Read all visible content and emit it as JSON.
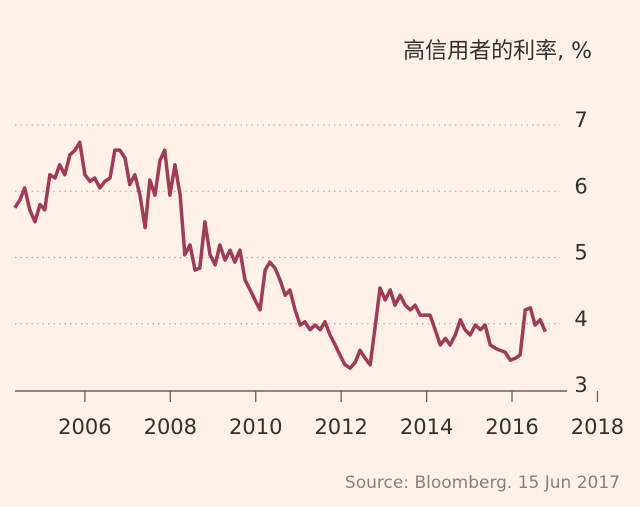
{
  "chart_data": {
    "type": "line",
    "title": "高信用者的利率, %",
    "source": "Source: Bloomberg. 15 Jun 2017",
    "x": [
      2004.36,
      2004.48,
      2004.59,
      2004.71,
      2004.83,
      2004.95,
      2005.06,
      2005.18,
      2005.3,
      2005.41,
      2005.53,
      2005.65,
      2005.77,
      2005.88,
      2006.0,
      2006.12,
      2006.23,
      2006.35,
      2006.47,
      2006.59,
      2006.7,
      2006.82,
      2006.94,
      2007.05,
      2007.17,
      2007.29,
      2007.41,
      2007.52,
      2007.64,
      2007.76,
      2007.87,
      2007.99,
      2008.11,
      2008.23,
      2008.34,
      2008.46,
      2008.58,
      2008.69,
      2008.81,
      2008.93,
      2009.05,
      2009.16,
      2009.28,
      2009.4,
      2009.51,
      2009.63,
      2009.75,
      2009.87,
      2009.98,
      2010.1,
      2010.22,
      2010.33,
      2010.45,
      2010.57,
      2010.69,
      2010.8,
      2010.92,
      2011.04,
      2011.15,
      2011.27,
      2011.39,
      2011.51,
      2011.62,
      2011.74,
      2011.86,
      2011.97,
      2012.09,
      2012.21,
      2012.33,
      2012.44,
      2012.56,
      2012.68,
      2012.8,
      2012.91,
      2013.03,
      2013.15,
      2013.26,
      2013.38,
      2013.5,
      2013.62,
      2013.73,
      2013.85,
      2013.97,
      2014.08,
      2014.2,
      2014.32,
      2014.44,
      2014.55,
      2014.67,
      2014.79,
      2014.9,
      2015.02,
      2015.14,
      2015.26,
      2015.37,
      2015.49,
      2015.61,
      2015.72,
      2015.84,
      2015.96,
      2016.08,
      2016.19,
      2016.31,
      2016.43,
      2016.54,
      2016.66,
      2016.78
    ],
    "series": [
      {
        "color": "#9e3b56",
        "values": [
          5.75,
          5.87,
          6.05,
          5.72,
          5.54,
          5.8,
          5.72,
          6.25,
          6.2,
          6.4,
          6.25,
          6.55,
          6.62,
          6.74,
          6.25,
          6.15,
          6.2,
          6.05,
          6.15,
          6.2,
          6.62,
          6.62,
          6.5,
          6.1,
          6.25,
          5.94,
          5.45,
          6.17,
          5.94,
          6.47,
          6.62,
          5.94,
          6.4,
          5.94,
          5.04,
          5.19,
          4.81,
          4.84,
          5.54,
          5.04,
          4.89,
          5.19,
          4.96,
          5.11,
          4.93,
          5.11,
          4.66,
          4.51,
          4.36,
          4.21,
          4.81,
          4.93,
          4.84,
          4.66,
          4.43,
          4.51,
          4.21,
          3.98,
          4.03,
          3.91,
          3.98,
          3.91,
          4.03,
          3.83,
          3.68,
          3.53,
          3.38,
          3.33,
          3.42,
          3.6,
          3.48,
          3.38,
          3.98,
          4.54,
          4.36,
          4.51,
          4.28,
          4.43,
          4.28,
          4.21,
          4.28,
          4.13,
          4.13,
          4.13,
          3.91,
          3.68,
          3.78,
          3.68,
          3.83,
          4.06,
          3.91,
          3.83,
          3.98,
          3.91,
          3.98,
          3.68,
          3.63,
          3.6,
          3.57,
          3.45,
          3.48,
          3.53,
          4.21,
          4.24,
          3.98,
          4.06,
          3.88
        ]
      }
    ],
    "xlim": [
      2004.2,
      2018.2
    ],
    "xticks": [
      2006,
      2008,
      2010,
      2012,
      2014,
      2016,
      2018
    ],
    "ylim": [
      3,
      7
    ],
    "yticks": [
      3,
      4,
      5,
      6,
      7
    ],
    "grid": true
  }
}
